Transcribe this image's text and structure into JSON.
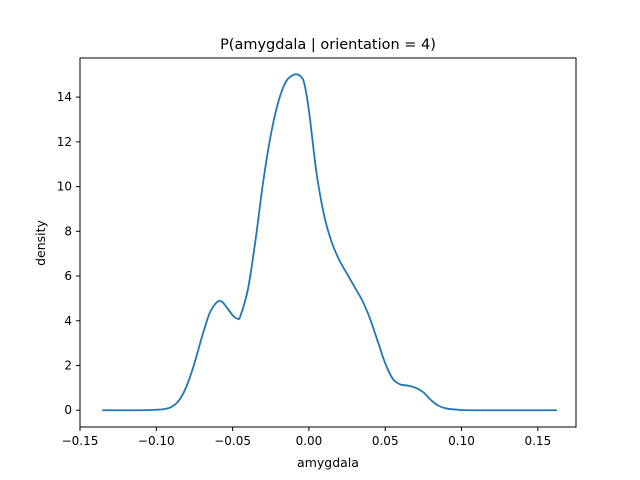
{
  "chart_data": {
    "type": "line",
    "title": "P(amygdala | orientation = 4)",
    "xlabel": "amygdala",
    "ylabel": "density",
    "xlim": [
      -0.15,
      0.175
    ],
    "ylim": [
      -0.75,
      15.75
    ],
    "xticks": [
      -0.15,
      -0.1,
      -0.05,
      0.0,
      0.05,
      0.1,
      0.15
    ],
    "xtick_labels": [
      "−0.15",
      "−0.10",
      "−0.05",
      "0.00",
      "0.05",
      "0.10",
      "0.15"
    ],
    "yticks": [
      0,
      2,
      4,
      6,
      8,
      10,
      12,
      14
    ],
    "ytick_labels": [
      "0",
      "2",
      "4",
      "6",
      "8",
      "10",
      "12",
      "14"
    ],
    "grid": false,
    "legend": "none",
    "line_color": "#1f77b4",
    "series": [
      {
        "x": [
          -0.135,
          -0.12,
          -0.11,
          -0.1,
          -0.095,
          -0.09,
          -0.085,
          -0.08,
          -0.075,
          -0.07,
          -0.065,
          -0.06,
          -0.057,
          -0.055,
          -0.05,
          -0.047,
          -0.045,
          -0.04,
          -0.035,
          -0.03,
          -0.025,
          -0.02,
          -0.015,
          -0.01,
          -0.007,
          -0.005,
          -0.003,
          0.0,
          0.005,
          0.01,
          0.015,
          0.02,
          0.025,
          0.03,
          0.035,
          0.04,
          0.045,
          0.05,
          0.055,
          0.06,
          0.065,
          0.07,
          0.075,
          0.08,
          0.085,
          0.09,
          0.1,
          0.11,
          0.12,
          0.14,
          0.162
        ],
        "y": [
          0.0,
          0.0,
          0.0,
          0.02,
          0.05,
          0.15,
          0.45,
          1.1,
          2.1,
          3.3,
          4.35,
          4.85,
          4.85,
          4.7,
          4.25,
          4.1,
          4.2,
          5.4,
          7.6,
          10.2,
          12.3,
          13.8,
          14.7,
          15.0,
          15.0,
          14.9,
          14.6,
          13.4,
          10.6,
          8.7,
          7.5,
          6.7,
          6.1,
          5.5,
          4.9,
          4.1,
          3.1,
          2.1,
          1.4,
          1.15,
          1.1,
          1.0,
          0.8,
          0.45,
          0.2,
          0.08,
          0.01,
          0.0,
          0.0,
          0.0,
          0.0
        ]
      }
    ]
  }
}
